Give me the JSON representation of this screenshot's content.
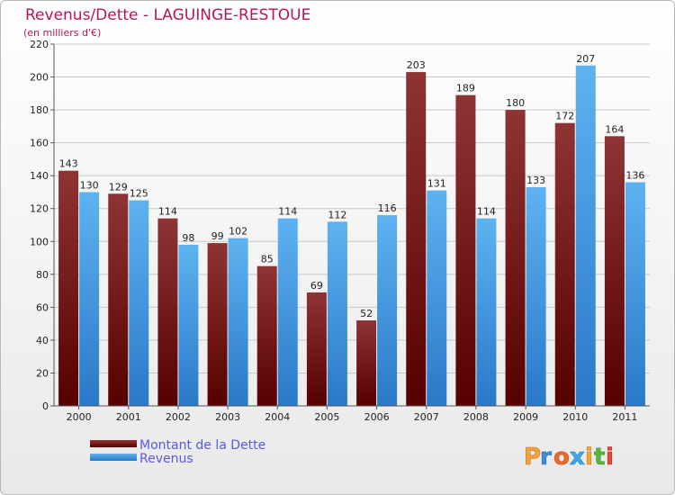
{
  "chart_data": {
    "type": "bar",
    "title": "Revenus/Dette - LAGUINGE-RESTOUE",
    "subtitle": "(en milliers d'€)",
    "categories": [
      "2000",
      "2001",
      "2002",
      "2003",
      "2004",
      "2005",
      "2006",
      "2007",
      "2008",
      "2009",
      "2010",
      "2011"
    ],
    "series": [
      {
        "name": "Montant de la Dette",
        "values": [
          143,
          129,
          114,
          99,
          85,
          69,
          52,
          203,
          189,
          180,
          172,
          164
        ],
        "color": "#7a1f1f"
      },
      {
        "name": "Revenus",
        "values": [
          130,
          125,
          98,
          102,
          114,
          112,
          116,
          131,
          114,
          133,
          207,
          136
        ],
        "color": "#3d9ee3"
      }
    ],
    "ylim": [
      0,
      220
    ],
    "yticks": [
      0,
      20,
      40,
      60,
      80,
      100,
      120,
      140,
      160,
      180,
      200,
      220
    ],
    "grid": true,
    "legend_position": "bottom-left"
  },
  "watermark": "Proxiti"
}
